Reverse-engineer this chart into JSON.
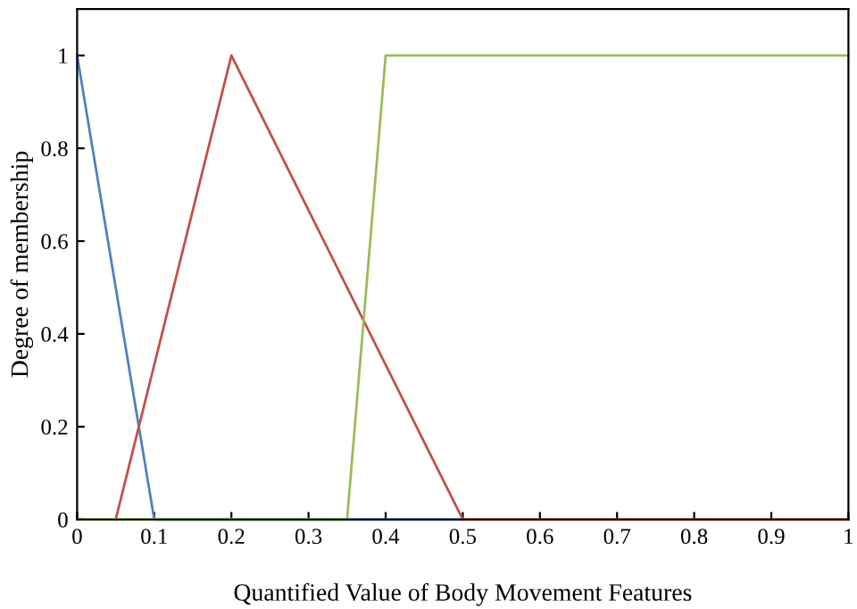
{
  "chart_data": {
    "type": "line",
    "xlabel": "Quantified Value of Body Movement Features",
    "ylabel": "Degree of membership",
    "series": [
      {
        "color": "#4f81bd",
        "x": [
          0,
          0.1,
          0.5
        ],
        "values": [
          1,
          0,
          0
        ]
      },
      {
        "color": "#c0504d",
        "x": [
          0.05,
          0.2,
          0.5,
          1
        ],
        "values": [
          0,
          1,
          0,
          0
        ]
      },
      {
        "color": "#9bbb59",
        "x": [
          0,
          0.35,
          0.4,
          1
        ],
        "values": [
          0,
          0,
          1,
          1
        ]
      }
    ],
    "xlim": [
      0,
      1
    ],
    "xticks": [
      0,
      0.1,
      0.2,
      0.3,
      0.4,
      0.5,
      0.6,
      0.7,
      0.8,
      0.9,
      1
    ],
    "ylim": [
      0,
      1.1
    ],
    "yticks": [
      0,
      0.2,
      0.4,
      0.6,
      0.8,
      1
    ],
    "grid": false,
    "marker": "none",
    "line_style": "solid"
  }
}
